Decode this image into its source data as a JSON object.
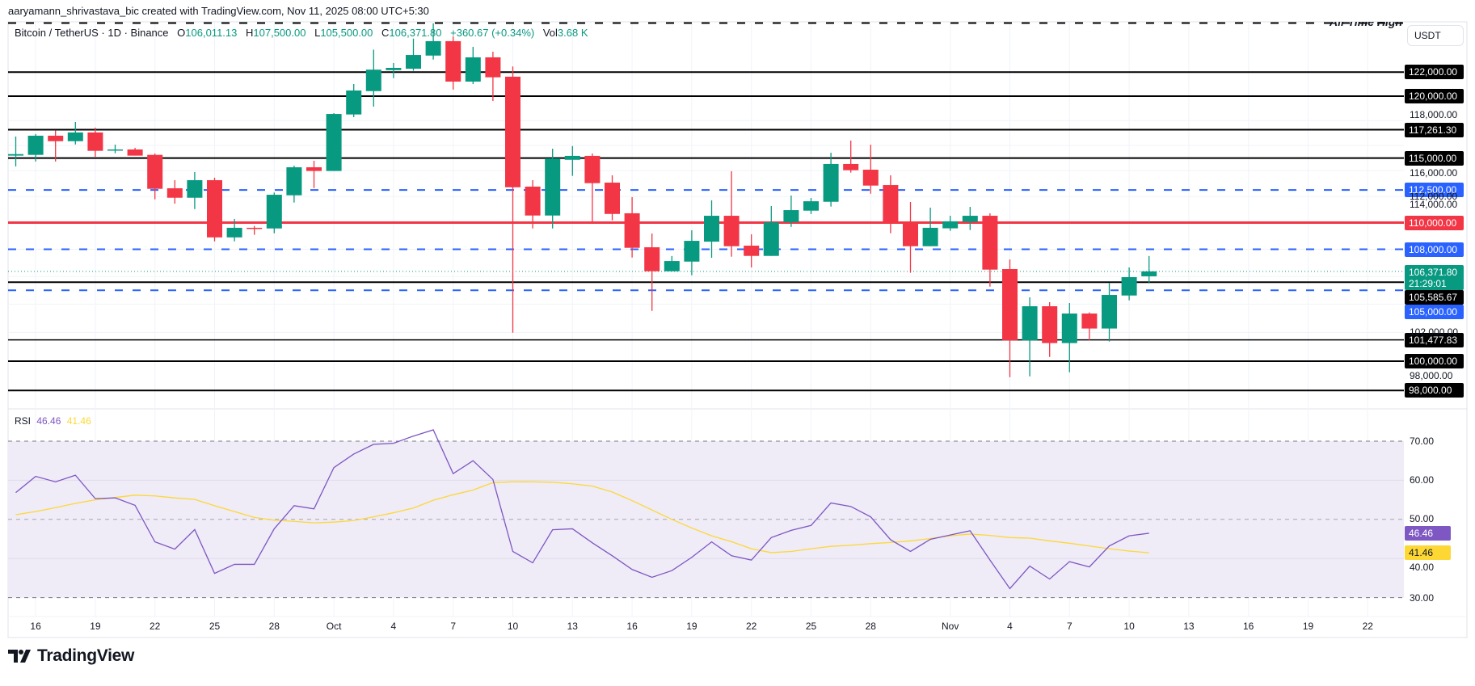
{
  "attribution": "aaryamann_shrivastava_bic created with TradingView.com, Nov 11, 2025 08:00 UTC+5:30",
  "legend": {
    "symbol": "Bitcoin / TetherUS · 1D · Binance",
    "o_label": "O",
    "o_value": "106,011.13",
    "h_label": "H",
    "h_value": "107,500.00",
    "l_label": "L",
    "l_value": "105,500.00",
    "c_label": "C",
    "c_value": "106,371.80",
    "change": "+360.67 (+0.34%)",
    "vol_label": "Vol",
    "vol_value": "3.68 K"
  },
  "currency_button": "USDT",
  "ath_label": "All-Time High",
  "logo_text": "TradingView",
  "colors": {
    "up": "#089981",
    "down": "#f23645",
    "blue_level": "#2962ff",
    "black_level": "#000000",
    "red_level": "#f23645",
    "rsi": "#7e57c2",
    "rsi_ma": "#fdd835",
    "rsi_band": "#efebf7"
  },
  "chart_data": {
    "type": "candlestick",
    "title": "",
    "y_scale": "log",
    "grid": true,
    "dates": [
      "2025-09-15",
      "2025-09-16",
      "2025-09-17",
      "2025-09-18",
      "2025-09-19",
      "2025-09-20",
      "2025-09-21",
      "2025-09-22",
      "2025-09-23",
      "2025-09-24",
      "2025-09-25",
      "2025-09-26",
      "2025-09-27",
      "2025-09-28",
      "2025-09-29",
      "2025-09-30",
      "2025-10-01",
      "2025-10-02",
      "2025-10-03",
      "2025-10-04",
      "2025-10-05",
      "2025-10-06",
      "2025-10-07",
      "2025-10-08",
      "2025-10-09",
      "2025-10-10",
      "2025-10-11",
      "2025-10-12",
      "2025-10-13",
      "2025-10-14",
      "2025-10-15",
      "2025-10-16",
      "2025-10-17",
      "2025-10-18",
      "2025-10-19",
      "2025-10-20",
      "2025-10-21",
      "2025-10-22",
      "2025-10-23",
      "2025-10-24",
      "2025-10-25",
      "2025-10-26",
      "2025-10-27",
      "2025-10-28",
      "2025-10-29",
      "2025-10-30",
      "2025-10-31",
      "2025-11-01",
      "2025-11-02",
      "2025-11-03",
      "2025-11-04",
      "2025-11-05",
      "2025-11-06",
      "2025-11-07",
      "2025-11-08",
      "2025-11-09",
      "2025-11-10",
      "2025-11-11"
    ],
    "ohlc": [
      [
        115190,
        116710,
        114340,
        115310
      ],
      [
        115250,
        116910,
        114720,
        116780
      ],
      [
        116780,
        117190,
        114720,
        116340
      ],
      [
        116340,
        117890,
        116080,
        117040
      ],
      [
        117040,
        117430,
        115100,
        115570
      ],
      [
        115660,
        116070,
        115380,
        115680
      ],
      [
        115680,
        115810,
        115190,
        115190
      ],
      [
        115250,
        115360,
        111780,
        112590
      ],
      [
        112630,
        113260,
        111450,
        111900
      ],
      [
        111900,
        113890,
        111030,
        113260
      ],
      [
        113260,
        113450,
        108590,
        108890
      ],
      [
        108890,
        110280,
        108590,
        109610
      ],
      [
        109610,
        109750,
        109080,
        109580
      ],
      [
        109560,
        112300,
        109200,
        112130
      ],
      [
        112090,
        114400,
        111530,
        114270
      ],
      [
        114270,
        114780,
        112650,
        113980
      ],
      [
        113980,
        118610,
        113980,
        118540
      ],
      [
        118500,
        121010,
        118280,
        120470
      ],
      [
        120420,
        123900,
        119140,
        122210
      ],
      [
        122170,
        122770,
        121500,
        122360
      ],
      [
        122290,
        124850,
        122120,
        123450
      ],
      [
        123400,
        126160,
        123060,
        124630
      ],
      [
        124630,
        125040,
        120540,
        121210
      ],
      [
        121210,
        124140,
        121010,
        123250
      ],
      [
        123250,
        123730,
        119600,
        121570
      ],
      [
        121620,
        122480,
        101980,
        112710
      ],
      [
        112760,
        113260,
        109560,
        110540
      ],
      [
        110540,
        115740,
        109560,
        114970
      ],
      [
        114860,
        115950,
        113600,
        115170
      ],
      [
        115170,
        115360,
        110030,
        113030
      ],
      [
        113070,
        113640,
        110170,
        110660
      ],
      [
        110710,
        111950,
        107390,
        108110
      ],
      [
        108150,
        109180,
        103520,
        106380
      ],
      [
        106380,
        107500,
        106380,
        107130
      ],
      [
        107090,
        109420,
        106090,
        108630
      ],
      [
        108570,
        111700,
        107370,
        110520
      ],
      [
        110520,
        113960,
        107450,
        108230
      ],
      [
        108270,
        109120,
        106660,
        107510
      ],
      [
        107510,
        111260,
        107510,
        110020
      ],
      [
        110030,
        112070,
        109680,
        110950
      ],
      [
        110910,
        111880,
        110650,
        111630
      ],
      [
        111590,
        115420,
        111220,
        114530
      ],
      [
        114530,
        116390,
        113850,
        114040
      ],
      [
        114080,
        116060,
        112210,
        112840
      ],
      [
        112880,
        113640,
        109200,
        110010
      ],
      [
        110010,
        111570,
        106270,
        108230
      ],
      [
        108230,
        111140,
        108230,
        109610
      ],
      [
        109570,
        110520,
        109380,
        110100
      ],
      [
        110060,
        111200,
        109440,
        110520
      ],
      [
        110520,
        110710,
        105260,
        106500
      ],
      [
        106540,
        107250,
        98900,
        101440
      ],
      [
        101440,
        104490,
        98960,
        103850
      ],
      [
        103850,
        104140,
        100290,
        101250
      ],
      [
        101250,
        104080,
        99240,
        103330
      ],
      [
        103330,
        103410,
        101440,
        102270
      ],
      [
        102270,
        105540,
        101360,
        104660
      ],
      [
        104620,
        106660,
        104270,
        105950
      ],
      [
        106011.13,
        107500,
        105500,
        106371.8
      ]
    ],
    "ath_level": 126200,
    "levels": [
      {
        "price": 122000,
        "style": "solid",
        "color": "#000000",
        "label": "122,000.00"
      },
      {
        "price": 120000,
        "style": "solid",
        "color": "#000000",
        "label": "120,000.00"
      },
      {
        "price": 117261.3,
        "style": "solid",
        "color": "#000000",
        "label": "117,261.30"
      },
      {
        "price": 115000,
        "style": "solid",
        "color": "#000000",
        "label": "115,000.00"
      },
      {
        "price": 112500,
        "style": "dashed",
        "color": "#2962ff",
        "label": "112,500.00"
      },
      {
        "price": 110000,
        "style": "solid-thick",
        "color": "#f23645",
        "label": "110,000.00"
      },
      {
        "price": 108000,
        "style": "dashed",
        "color": "#2962ff",
        "label": "108,000.00"
      },
      {
        "price": 105585.67,
        "style": "solid",
        "color": "#000000",
        "label": "105,585.67"
      },
      {
        "price": 105000,
        "style": "dashed",
        "color": "#2962ff",
        "label": "105,000.00"
      },
      {
        "price": 101477.83,
        "style": "solid-thin",
        "color": "#000000",
        "label": "101,477.83"
      },
      {
        "price": 100000,
        "style": "solid",
        "color": "#000000",
        "label": "100,000.00"
      },
      {
        "price": 98000,
        "style": "solid",
        "color": "#000000",
        "label": "98,000.00"
      }
    ],
    "current_price": {
      "price": 106371.8,
      "label": "106,371.80",
      "countdown": "21:29:01",
      "color": "#089981"
    },
    "price_axis_ticks": [
      {
        "price": 118000,
        "label": "118,000.00"
      },
      {
        "price": 116000,
        "label": "116,000.00"
      },
      {
        "price": 114000,
        "label": "114,000.00"
      },
      {
        "price": 112000,
        "label": "112,000.00"
      },
      {
        "price": 102000,
        "label": "102,000.00"
      },
      {
        "price": 98000,
        "label": "98,000.00"
      }
    ],
    "x_ticks": [
      {
        "label": "16",
        "date": "2025-09-16"
      },
      {
        "label": "19",
        "date": "2025-09-19"
      },
      {
        "label": "22",
        "date": "2025-09-22"
      },
      {
        "label": "25",
        "date": "2025-09-25"
      },
      {
        "label": "28",
        "date": "2025-09-28"
      },
      {
        "label": "Oct",
        "date": "2025-10-01"
      },
      {
        "label": "4",
        "date": "2025-10-04"
      },
      {
        "label": "7",
        "date": "2025-10-07"
      },
      {
        "label": "10",
        "date": "2025-10-10"
      },
      {
        "label": "13",
        "date": "2025-10-13"
      },
      {
        "label": "16",
        "date": "2025-10-16"
      },
      {
        "label": "19",
        "date": "2025-10-19"
      },
      {
        "label": "22",
        "date": "2025-10-22"
      },
      {
        "label": "25",
        "date": "2025-10-25"
      },
      {
        "label": "28",
        "date": "2025-10-28"
      },
      {
        "label": "Nov",
        "date": "2025-11-01"
      },
      {
        "label": "4",
        "date": "2025-11-04"
      },
      {
        "label": "7",
        "date": "2025-11-07"
      },
      {
        "label": "10",
        "date": "2025-11-10"
      },
      {
        "label": "13",
        "date": "2025-11-13"
      },
      {
        "label": "16",
        "date": "2025-11-16"
      },
      {
        "label": "19",
        "date": "2025-11-19"
      },
      {
        "label": "22",
        "date": "2025-11-22"
      }
    ],
    "rsi": {
      "label": "RSI",
      "value_label": "46.46",
      "ma_value_label": "41.46",
      "upper": 70,
      "middle": 50,
      "lower": 30,
      "axis_ticks": [
        {
          "value": 70,
          "label": "70.00"
        },
        {
          "value": 60,
          "label": "60.00"
        },
        {
          "value": 50,
          "label": "50.00"
        },
        {
          "value": 40,
          "label": "40.00"
        },
        {
          "value": 30,
          "label": "30.00"
        }
      ],
      "values": [
        56.85,
        61.0,
        59.6,
        61.3,
        55.3,
        55.5,
        53.6,
        44.25,
        42.4,
        47.4,
        36.2,
        38.5,
        38.5,
        47.6,
        53.5,
        52.7,
        63.25,
        66.7,
        69.2,
        69.45,
        71.3,
        72.9,
        61.7,
        65.0,
        60.2,
        41.8,
        38.9,
        47.35,
        47.6,
        44.0,
        40.7,
        37.2,
        35.2,
        36.9,
        40.3,
        44.25,
        40.7,
        39.6,
        45.35,
        47.2,
        48.45,
        54.2,
        53.3,
        50.65,
        44.8,
        41.8,
        44.9,
        46.0,
        47.1,
        39.6,
        32.3,
        38.05,
        34.75,
        39.2,
        37.85,
        43.2,
        45.8,
        46.46
      ],
      "ma_values": [
        51.2,
        52.0,
        53.0,
        54.1,
        55.0,
        55.6,
        56.2,
        56.0,
        55.5,
        55.1,
        53.5,
        52.0,
        50.5,
        49.8,
        49.5,
        49.1,
        49.3,
        49.7,
        50.65,
        51.7,
        52.9,
        54.9,
        56.3,
        57.5,
        59.4,
        59.6,
        59.6,
        59.5,
        59.1,
        58.5,
        57.0,
        54.8,
        52.4,
        50.0,
        47.8,
        45.8,
        44.3,
        42.5,
        41.5,
        41.8,
        42.5,
        43.1,
        43.4,
        43.8,
        44.1,
        44.5,
        45.1,
        45.8,
        46.25,
        45.9,
        45.35,
        45.2,
        44.5,
        43.9,
        43.2,
        42.5,
        41.9,
        41.46
      ]
    }
  }
}
